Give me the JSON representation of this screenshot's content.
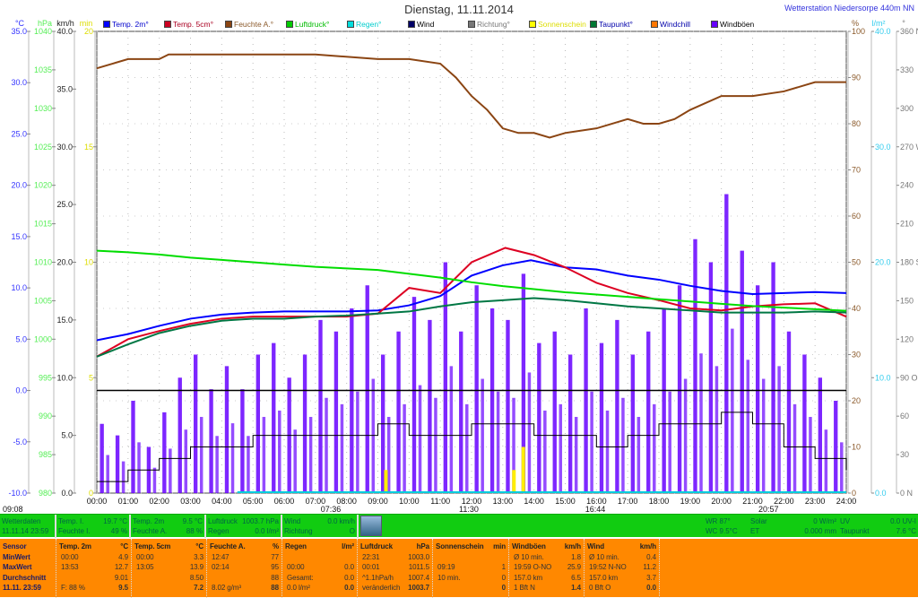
{
  "title": "Dienstag, 11.11.2014",
  "station": "Wetterstation Niedersorpe 440m NN",
  "legend": [
    {
      "label": "Temp. 2m°",
      "color": "#0000ff",
      "text": "#0000cc"
    },
    {
      "label": "Temp. 5cm°",
      "color": "#cc0022",
      "text": "#aa0022"
    },
    {
      "label": "Feuchte A.°",
      "color": "#8b4513",
      "text": "#8b5a2b"
    },
    {
      "label": "Luftdruck°",
      "color": "#00cc00",
      "text": "#00bb00"
    },
    {
      "label": "Regen°",
      "color": "#00dddd",
      "text": "#00cccc"
    },
    {
      "label": "Wind",
      "color": "#000066",
      "text": "#000"
    },
    {
      "label": "Richtung°",
      "color": "#777777",
      "text": "#777"
    },
    {
      "label": "Sonnenschein",
      "color": "#ffff00",
      "text": "#dddd00"
    },
    {
      "label": "Taupunkt°",
      "color": "#007733",
      "text": "#0000aa"
    },
    {
      "label": "Windchill",
      "color": "#ff7700",
      "text": "#0000aa"
    },
    {
      "label": "Windböen",
      "color": "#6600ff",
      "text": "#000"
    }
  ],
  "chart_data": {
    "type": "line",
    "title": "Dienstag, 11.11.2014",
    "x_ticks": [
      "00:00",
      "01:00",
      "02:00",
      "03:00",
      "04:00",
      "05:00",
      "06:00",
      "07:00",
      "08:00",
      "09:00",
      "10:00",
      "11:00",
      "12:00",
      "13:00",
      "14:00",
      "15:00",
      "16:00",
      "17:00",
      "18:00",
      "19:00",
      "20:00",
      "21:00",
      "22:00",
      "23:00",
      "24:00"
    ],
    "axes": {
      "temp": {
        "unit": "°C",
        "range": [
          -10,
          35
        ],
        "ticks": [
          "35.0",
          "30.0",
          "25.0",
          "20.0",
          "15.0",
          "10.0",
          "5.0",
          "0.0",
          "-5.0",
          "-10.0"
        ]
      },
      "pressure": {
        "unit": "hPa",
        "range": [
          980,
          1040
        ],
        "ticks": [
          "1040",
          "1035",
          "1030",
          "1025",
          "1020",
          "1015",
          "1010",
          "1005",
          "1000",
          "995",
          "990",
          "985",
          "980"
        ]
      },
      "wind": {
        "unit": "km/h",
        "range": [
          0,
          40
        ],
        "ticks": [
          "40.0",
          "35.0",
          "30.0",
          "25.0",
          "20.0",
          "15.0",
          "10.0",
          "5.0",
          "0.0"
        ]
      },
      "sun": {
        "unit": "min",
        "range": [
          0,
          20
        ],
        "ticks": [
          "20",
          "15",
          "10",
          "5",
          "0"
        ]
      },
      "humidity": {
        "unit": "%",
        "range": [
          0,
          100
        ],
        "ticks": [
          "100",
          "90",
          "80",
          "70",
          "60",
          "50",
          "40",
          "30",
          "20",
          "10",
          "0"
        ]
      },
      "rain": {
        "unit": "l/m²",
        "range": [
          0,
          40
        ],
        "ticks": [
          "40.0",
          "30.0",
          "20.0",
          "10.0",
          "0.0"
        ]
      },
      "direction": {
        "unit": "°",
        "range": [
          0,
          360
        ],
        "ticks": [
          "360 N",
          "330",
          "300",
          "270 W",
          "240",
          "210",
          "180 S",
          "150",
          "120",
          "90 O",
          "60",
          "30",
          "0 N"
        ]
      }
    },
    "series": [
      {
        "name": "Temp. 2m°",
        "axis": "temp",
        "color": "#0000ff",
        "x": [
          0,
          1,
          2,
          3,
          4,
          5,
          6,
          7,
          8,
          9,
          10,
          11,
          12,
          13,
          13.9,
          15,
          16,
          17,
          18,
          19,
          20,
          21,
          22,
          23,
          24
        ],
        "y": [
          4.9,
          5.5,
          6.3,
          7.0,
          7.4,
          7.6,
          7.7,
          7.7,
          7.7,
          7.8,
          8.3,
          9.2,
          11.2,
          12.2,
          12.7,
          12.0,
          11.8,
          11.2,
          10.8,
          10.2,
          9.7,
          9.4,
          9.5,
          9.6,
          9.5
        ]
      },
      {
        "name": "Temp. 5cm°",
        "axis": "temp",
        "color": "#dd0022",
        "x": [
          0,
          1,
          2,
          3,
          4,
          5,
          6,
          7,
          8,
          9,
          10,
          11,
          12,
          13.08,
          14,
          15,
          16,
          17,
          18,
          19,
          20,
          21,
          22,
          23,
          24
        ],
        "y": [
          3.3,
          5.0,
          5.8,
          6.5,
          7.0,
          7.2,
          7.2,
          7.2,
          7.2,
          7.5,
          10.0,
          9.5,
          12.5,
          13.9,
          13.2,
          12.0,
          10.5,
          9.5,
          8.8,
          8.0,
          7.8,
          8.2,
          8.4,
          8.5,
          7.2
        ]
      },
      {
        "name": "Feuchte A.°",
        "axis": "humidity",
        "color": "#8b4513",
        "x": [
          0,
          0.5,
          1,
          2,
          2.3,
          3,
          6,
          7,
          9,
          10,
          11,
          11.5,
          12,
          12.5,
          13,
          13.5,
          14,
          14.5,
          15,
          16,
          17,
          17.5,
          18,
          18.5,
          19,
          20,
          21,
          22,
          23,
          24
        ],
        "y": [
          92,
          93,
          94,
          94,
          95,
          95,
          95,
          95,
          94,
          94,
          93,
          90,
          86,
          83,
          79,
          78,
          78,
          77,
          78,
          79,
          81,
          80,
          80,
          81,
          83,
          86,
          86,
          87,
          89,
          89
        ]
      },
      {
        "name": "Luftdruck°",
        "axis": "pressure",
        "color": "#00dd00",
        "x": [
          0,
          1,
          2,
          3,
          4,
          5,
          6,
          7,
          8,
          9,
          10,
          11,
          12,
          13,
          14,
          15,
          16,
          17,
          18,
          19,
          20,
          21,
          22,
          23,
          24
        ],
        "y": [
          1011.5,
          1011.3,
          1011.0,
          1010.6,
          1010.3,
          1010.0,
          1009.7,
          1009.4,
          1009.2,
          1009.0,
          1008.5,
          1008.0,
          1007.4,
          1006.9,
          1006.5,
          1006.1,
          1005.8,
          1005.5,
          1005.2,
          1004.9,
          1004.6,
          1004.3,
          1004.1,
          1003.9,
          1003.7
        ]
      },
      {
        "name": "Taupunkt°",
        "axis": "temp",
        "color": "#007744",
        "x": [
          0,
          1,
          2,
          3,
          4,
          5,
          6,
          7,
          8,
          9,
          10,
          11,
          12,
          13,
          14,
          15,
          16,
          17,
          18,
          19,
          20,
          21,
          22,
          23,
          24
        ],
        "y": [
          3.3,
          4.5,
          5.6,
          6.3,
          6.8,
          7.0,
          7.0,
          7.2,
          7.3,
          7.5,
          7.7,
          8.2,
          8.6,
          8.8,
          9.0,
          8.8,
          8.5,
          8.2,
          8.0,
          7.8,
          7.6,
          7.6,
          7.6,
          7.7,
          7.6
        ]
      }
    ],
    "reference_line": {
      "axis": "temp",
      "value": 0,
      "color": "#000000"
    },
    "windboeen": {
      "name": "Windböen",
      "axis": "wind",
      "color": "#6600ff",
      "step_h": 0.5,
      "values": [
        6,
        5,
        8,
        4,
        7,
        10,
        12,
        9,
        11,
        9,
        12,
        13,
        10,
        12,
        15,
        14,
        16,
        18,
        12,
        14,
        17,
        15,
        20,
        14,
        18,
        16,
        15,
        19,
        13,
        14,
        12,
        16,
        13,
        15,
        12,
        14,
        16,
        18,
        22,
        20,
        25.9,
        21,
        18,
        20,
        14,
        12,
        10,
        8
      ]
    },
    "wind": {
      "name": "Wind",
      "axis": "wind",
      "color": "#000000",
      "step_h": 1,
      "values": [
        1,
        2,
        3,
        4,
        4,
        5,
        5,
        5,
        5,
        6,
        5,
        5,
        6,
        6,
        5,
        5,
        4,
        5,
        6,
        6,
        7,
        6,
        4,
        3,
        2
      ]
    },
    "sunshine": {
      "axis": "sun",
      "color": "#ffee00",
      "x": [
        9.2,
        13.3,
        13.6
      ],
      "values": [
        1,
        1,
        2
      ]
    },
    "rain": {
      "axis": "rain",
      "color": "#00ccdd",
      "value": 0
    },
    "annotations": [
      "09:08",
      "07:36",
      "11:30",
      "16:44",
      "20:57"
    ]
  },
  "greenbar": {
    "c1": {
      "l1": "Wetterdaten",
      "l2": "11.11.14 23:59"
    },
    "c2": {
      "l1": "Temp. I.",
      "v1": "19.7 °C",
      "l2": "Feuchte I.",
      "v2": "49 %"
    },
    "c3": {
      "l1": "Temp. 2m",
      "v1": "9.5 °C",
      "l2": "Feuchte A.",
      "v2": "88 %"
    },
    "c4": {
      "l1": "Luftdruck",
      "v1": "1003.7 hPa",
      "l2": "Regen",
      "v2": "0.0 l/m²"
    },
    "c5": {
      "l1": "Wind",
      "v1": "0.0 km/h",
      "l2": "Richtung",
      "v2": "O"
    },
    "r1": {
      "l1": "WR 87°",
      "l2": "WC 9.5°C"
    },
    "r2": {
      "l1": "Solar",
      "v1": "0 W/m²",
      "l2": "ET",
      "v2": "0.000 mm"
    },
    "r3": {
      "l1": "UV",
      "v1": "0.0 UV-I",
      "l2": "Taupunkt",
      "v2": "7.6 °C"
    }
  },
  "table": {
    "sensor": [
      "Sensor",
      "MinWert",
      "MaxWert",
      "Durchschnitt",
      "11.11. 23:59"
    ],
    "cols": [
      {
        "h": "Temp. 2m",
        "u": "°C",
        "rows": [
          [
            "00:00",
            "4.9"
          ],
          [
            "13:53",
            "12.7"
          ],
          [
            "",
            "9.01"
          ],
          [
            "F: 88 %",
            "9.5"
          ]
        ]
      },
      {
        "h": "Temp. 5cm",
        "u": "°C",
        "rows": [
          [
            "00:00",
            "3.3"
          ],
          [
            "13:05",
            "13.9"
          ],
          [
            "",
            "8.50"
          ],
          [
            "",
            "7.2"
          ]
        ]
      },
      {
        "h": "Feuchte A.",
        "u": "%",
        "rows": [
          [
            "12:47",
            "77"
          ],
          [
            "02:14",
            "95"
          ],
          [
            "",
            "88"
          ],
          [
            "8.02 g/m³",
            "88"
          ]
        ]
      },
      {
        "h": "Regen",
        "u": "l/m²",
        "rows": [
          [
            "",
            ""
          ],
          [
            "00:00",
            "0.0"
          ],
          [
            "Gesamt:",
            "0.0"
          ],
          [
            "0.0 l/m²",
            "0.0"
          ]
        ]
      },
      {
        "h": "Luftdruck",
        "u": "hPa",
        "rows": [
          [
            "22:31",
            "1003.0"
          ],
          [
            "00:01",
            "1011.5"
          ],
          [
            "^1.1hPa/h",
            "1007.4"
          ],
          [
            "veränderlich",
            "1003.7"
          ]
        ]
      },
      {
        "h": "Sonnenschein",
        "u": "min",
        "rows": [
          [
            "",
            ""
          ],
          [
            "09:19",
            "1"
          ],
          [
            "10 min.",
            "0"
          ],
          [
            "",
            "0"
          ]
        ]
      },
      {
        "h": "Windböen",
        "u": "km/h",
        "rows": [
          [
            "Ø 10 min.",
            "1.8"
          ],
          [
            "19:59  O-NO",
            "25.9"
          ],
          [
            "157.0 km",
            "6.5"
          ],
          [
            "1 Bft N",
            "1.4"
          ]
        ]
      },
      {
        "h": "Wind",
        "u": "km/h",
        "rows": [
          [
            "Ø 10 min.",
            "0.4"
          ],
          [
            "19:52  N-NO",
            "11.2"
          ],
          [
            "157.0 km",
            "3.7"
          ],
          [
            "0 Bft O",
            "0.0"
          ]
        ]
      }
    ]
  }
}
